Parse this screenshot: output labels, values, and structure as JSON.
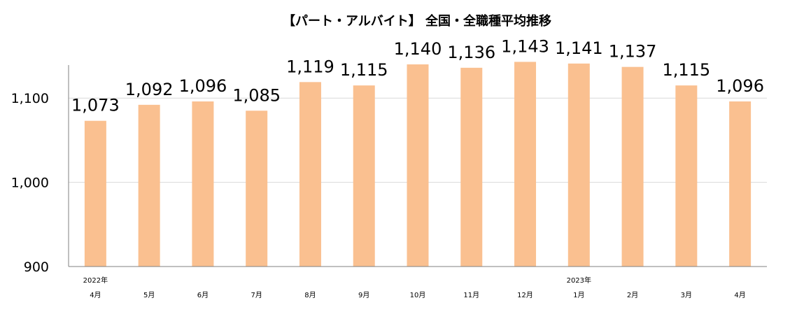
{
  "chart_data": {
    "type": "bar",
    "title": "【パート・アルバイト】 全国・全職種平均推移",
    "categories": [
      "4月",
      "5月",
      "6月",
      "7月",
      "8月",
      "9月",
      "10月",
      "11月",
      "12月",
      "1月",
      "2月",
      "3月",
      "4月"
    ],
    "year_labels": [
      "2022年",
      "",
      "",
      "",
      "",
      "",
      "",
      "",
      "",
      "2023年",
      "",
      "",
      ""
    ],
    "values": [
      1073,
      1092,
      1096,
      1085,
      1119,
      1115,
      1140,
      1136,
      1143,
      1141,
      1137,
      1115,
      1096
    ],
    "value_labels": [
      "1,073",
      "1,092",
      "1,096",
      "1,085",
      "1,119",
      "1,115",
      "1,140",
      "1,136",
      "1,143",
      "1,141",
      "1,137",
      "1,115",
      "1,096"
    ],
    "yticks": [
      900,
      1000,
      1100
    ],
    "ytick_labels": [
      "900",
      "1,000",
      "1,100"
    ],
    "ylim": [
      900,
      1150
    ],
    "grid": true,
    "colors": {
      "bar": "#FAC090",
      "grid": "#D9D9D9",
      "axis": "#808080"
    }
  }
}
